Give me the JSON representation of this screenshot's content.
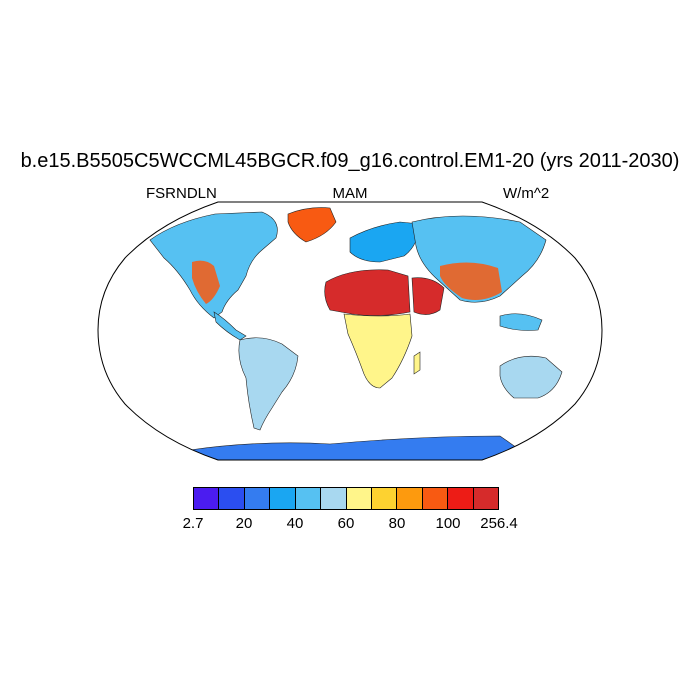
{
  "title": "b.e15.B5505C5WCCML45BGCR.f09_g16.control.EM1-20 (yrs 2011-2030)",
  "subtitle_left": "FSRNDLN",
  "subtitle_center": "MAM",
  "subtitle_right": "W/m^2",
  "colorbar": {
    "colors": [
      "#4b1cf0",
      "#2b4ef0",
      "#347cf0",
      "#1aa6f2",
      "#56c1f2",
      "#a8d8f0",
      "#fff58a",
      "#fdd230",
      "#fd9a0e",
      "#f85a12",
      "#ed1c16",
      "#d62b2b"
    ],
    "labels": [
      "2.7",
      "20",
      "40",
      "60",
      "80",
      "100",
      "256.4"
    ]
  },
  "map": {
    "projection": "Robinson",
    "ocean_color": "#ffffff",
    "regions": [
      {
        "name": "north-america",
        "level": 4
      },
      {
        "name": "greenland",
        "level": 9
      },
      {
        "name": "south-america",
        "level": 5
      },
      {
        "name": "europe",
        "level": 3
      },
      {
        "name": "asia",
        "level": 4
      },
      {
        "name": "north-africa-sahara",
        "level": 11
      },
      {
        "name": "arabian-peninsula",
        "level": 11
      },
      {
        "name": "southern-africa",
        "level": 6
      },
      {
        "name": "australia",
        "level": 5
      },
      {
        "name": "antarctica",
        "level": 2
      }
    ]
  }
}
